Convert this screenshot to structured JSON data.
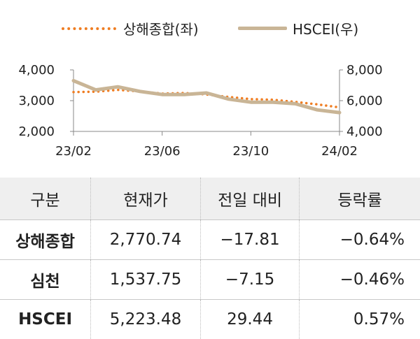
{
  "legend": [
    {
      "label": "상해종합(좌)",
      "color": "#ef7d22",
      "style": "dotted"
    },
    {
      "label": "HSCEI(우)",
      "color": "#c9b596",
      "style": "solid"
    }
  ],
  "chart_data": {
    "type": "line",
    "x_ticks": [
      "23/02",
      "23/06",
      "23/10",
      "24/02"
    ],
    "y_left": {
      "ticks": [
        "2,000",
        "3,000",
        "4,000"
      ],
      "range": [
        2000,
        4000
      ]
    },
    "y_right": {
      "ticks": [
        "4,000",
        "6,000",
        "8,000"
      ],
      "range": [
        4000,
        8000
      ]
    },
    "x_range": [
      "2023-02",
      "2024-02"
    ],
    "series": [
      {
        "name": "상해종합(좌)",
        "axis": "left",
        "color": "#ef7d22",
        "style": "dotted",
        "x": [
          "2023-02",
          "2023-03",
          "2023-04",
          "2023-05",
          "2023-06",
          "2023-07",
          "2023-08",
          "2023-09",
          "2023-10",
          "2023-11",
          "2023-12",
          "2024-01",
          "2024-02"
        ],
        "values": [
          3280,
          3290,
          3350,
          3300,
          3230,
          3250,
          3200,
          3120,
          3050,
          3030,
          2960,
          2880,
          2780
        ]
      },
      {
        "name": "HSCEI(우)",
        "axis": "right",
        "color": "#c9b596",
        "style": "solid",
        "x": [
          "2023-02",
          "2023-03",
          "2023-04",
          "2023-05",
          "2023-06",
          "2023-07",
          "2023-08",
          "2023-09",
          "2023-10",
          "2023-11",
          "2023-12",
          "2024-01",
          "2024-02"
        ],
        "values": [
          7300,
          6700,
          6900,
          6600,
          6400,
          6400,
          6500,
          6100,
          5900,
          5900,
          5800,
          5400,
          5223
        ]
      }
    ]
  },
  "table": {
    "headers": [
      "구분",
      "현재가",
      "전일 대비",
      "등락률"
    ],
    "rows": [
      [
        "상해종합",
        "2,770.74",
        "−17.81",
        "−0.64%"
      ],
      [
        "심천",
        "1,537.75",
        "−7.15",
        "−0.46%"
      ],
      [
        "HSCEI",
        "5,223.48",
        "29.44",
        "0.57%"
      ]
    ]
  }
}
